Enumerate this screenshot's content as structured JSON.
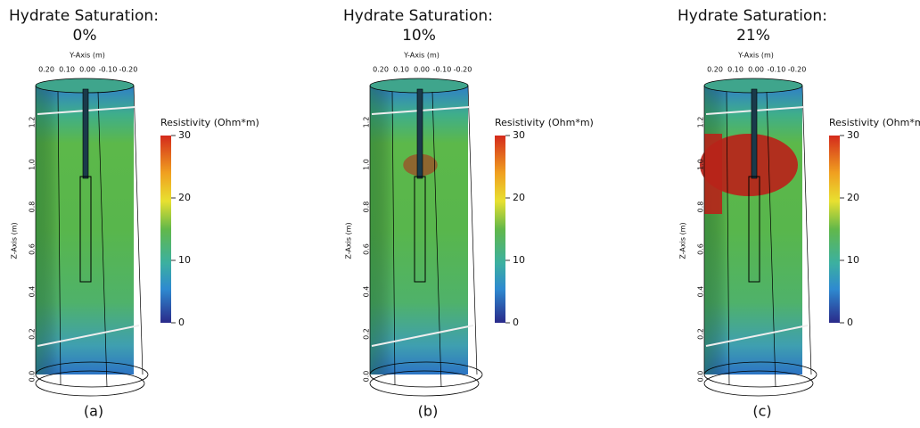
{
  "panels": [
    {
      "title": "Hydrate Saturation:",
      "saturation": "0%",
      "y_axis_label": "Y-Axis (m)",
      "y_ticks": [
        "0.20",
        "0.10",
        "0.00",
        "-0.10",
        "-0.20"
      ],
      "z_axis_label": "Z-Axis (m)",
      "z_ticks": [
        "0.0",
        "0.2",
        "0.4",
        "0.6",
        "0.8",
        "1.0",
        "1.2"
      ],
      "colorbar_label": "Resistivity (Ohm*m)",
      "colorbar_ticks": [
        0,
        10,
        20,
        30
      ],
      "label": "(a)"
    },
    {
      "title": "Hydrate Saturation:",
      "saturation": "10%",
      "y_axis_label": "Y-Axis (m)",
      "y_ticks": [
        "0.20",
        "0.10",
        "0.00",
        "-0.10",
        "-0.20"
      ],
      "z_axis_label": "Z-Axis (m)",
      "z_ticks": [
        "0.0",
        "0.2",
        "0.4",
        "0.6",
        "0.8",
        "1.0",
        "1.2"
      ],
      "colorbar_label": "Resistivity (Ohm*m)",
      "colorbar_ticks": [
        0,
        10,
        20,
        30
      ],
      "label": "(b)"
    },
    {
      "title": "Hydrate Saturation:",
      "saturation": "21%",
      "y_axis_label": "Y-Axis (m)",
      "y_ticks": [
        "0.20",
        "0.10",
        "0.00",
        "-0.10",
        "-0.20"
      ],
      "z_axis_label": "Z-Axis (m)",
      "z_ticks": [
        "0.0",
        "0.2",
        "0.4",
        "0.6",
        "0.8",
        "1.0",
        "1.2"
      ],
      "colorbar_label": "Resistivity (Ohm*m)",
      "colorbar_ticks": [
        0,
        10,
        20,
        30
      ],
      "label": "(c)"
    }
  ]
}
